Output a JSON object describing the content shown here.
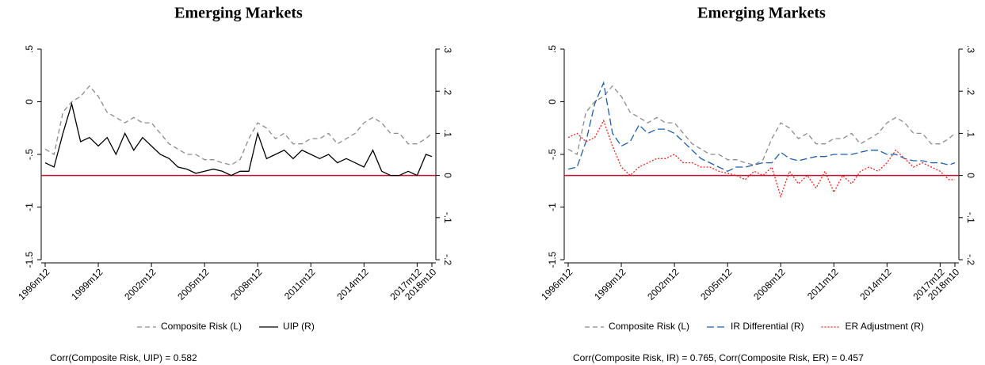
{
  "chart_data": [
    {
      "type": "line",
      "title": "Emerging Markets",
      "x": [
        "1996m12",
        "1997m06",
        "1997m12",
        "1998m06",
        "1998m12",
        "1999m06",
        "1999m12",
        "2000m06",
        "2000m12",
        "2001m06",
        "2001m12",
        "2002m06",
        "2002m12",
        "2003m06",
        "2003m12",
        "2004m06",
        "2004m12",
        "2005m06",
        "2005m12",
        "2006m06",
        "2006m12",
        "2007m06",
        "2007m12",
        "2008m06",
        "2008m12",
        "2009m06",
        "2009m12",
        "2010m06",
        "2010m12",
        "2011m06",
        "2011m12",
        "2012m06",
        "2012m12",
        "2013m06",
        "2013m12",
        "2014m06",
        "2014m12",
        "2015m06",
        "2015m12",
        "2016m06",
        "2016m12",
        "2017m06",
        "2017m12",
        "2018m06",
        "2018m10"
      ],
      "xticks": [
        "1996m12",
        "1999m12",
        "2002m12",
        "2005m12",
        "2008m12",
        "2011m12",
        "2014m12",
        "2017m12",
        "2018m10"
      ],
      "ylim": [
        -1.5,
        0.5
      ],
      "yticks": [
        {
          "value": -1.5,
          "label": "-1.5"
        },
        -1,
        {
          "value": -0.5,
          "label": "-.5"
        },
        0,
        {
          "value": 0.5,
          "label": ".5"
        }
      ],
      "y2lim": [
        -0.2,
        0.3
      ],
      "y2ticks": [
        {
          "value": -0.2,
          "label": "-.2"
        },
        {
          "value": -0.1,
          "label": "-.1"
        },
        0,
        {
          "value": 0.1,
          "label": ".1"
        },
        {
          "value": 0.2,
          "label": ".2"
        },
        {
          "value": 0.3,
          "label": ".3"
        }
      ],
      "hline": {
        "value": 0,
        "axis": "y2",
        "color": "#c8102e"
      },
      "series": [
        {
          "name": "Composite Risk (L)",
          "color": "#8c8c8c",
          "dash": "dashed",
          "axis": "y",
          "values": [
            -0.45,
            -0.5,
            -0.1,
            0.0,
            0.05,
            0.15,
            0.05,
            -0.1,
            -0.15,
            -0.2,
            -0.15,
            -0.2,
            -0.2,
            -0.3,
            -0.4,
            -0.45,
            -0.5,
            -0.5,
            -0.55,
            -0.55,
            -0.58,
            -0.6,
            -0.55,
            -0.35,
            -0.2,
            -0.25,
            -0.35,
            -0.3,
            -0.4,
            -0.4,
            -0.35,
            -0.35,
            -0.3,
            -0.4,
            -0.35,
            -0.3,
            -0.2,
            -0.15,
            -0.2,
            -0.3,
            -0.3,
            -0.4,
            -0.4,
            -0.35,
            -0.3
          ]
        },
        {
          "name": "UIP (R)",
          "color": "#000000",
          "dash": "solid",
          "axis": "y2",
          "values": [
            0.03,
            0.02,
            0.1,
            0.17,
            0.08,
            0.09,
            0.07,
            0.09,
            0.05,
            0.1,
            0.06,
            0.09,
            0.07,
            0.05,
            0.04,
            0.02,
            0.015,
            0.005,
            0.01,
            0.015,
            0.01,
            0.0,
            0.01,
            0.01,
            0.1,
            0.04,
            0.05,
            0.06,
            0.04,
            0.06,
            0.05,
            0.04,
            0.05,
            0.03,
            0.04,
            0.03,
            0.02,
            0.06,
            0.01,
            0.0,
            0.0,
            0.01,
            0.0,
            0.05,
            0.045
          ]
        }
      ],
      "note": "Corr(Composite Risk, UIP) = 0.582"
    },
    {
      "type": "line",
      "title": "Emerging Markets",
      "x": [
        "1996m12",
        "1997m06",
        "1997m12",
        "1998m06",
        "1998m12",
        "1999m06",
        "1999m12",
        "2000m06",
        "2000m12",
        "2001m06",
        "2001m12",
        "2002m06",
        "2002m12",
        "2003m06",
        "2003m12",
        "2004m06",
        "2004m12",
        "2005m06",
        "2005m12",
        "2006m06",
        "2006m12",
        "2007m06",
        "2007m12",
        "2008m06",
        "2008m12",
        "2009m06",
        "2009m12",
        "2010m06",
        "2010m12",
        "2011m06",
        "2011m12",
        "2012m06",
        "2012m12",
        "2013m06",
        "2013m12",
        "2014m06",
        "2014m12",
        "2015m06",
        "2015m12",
        "2016m06",
        "2016m12",
        "2017m06",
        "2017m12",
        "2018m06",
        "2018m10"
      ],
      "xticks": [
        "1996m12",
        "1999m12",
        "2002m12",
        "2005m12",
        "2008m12",
        "2011m12",
        "2014m12",
        "2017m12",
        "2018m10"
      ],
      "ylim": [
        -1.5,
        0.5
      ],
      "yticks": [
        {
          "value": -1.5,
          "label": "-1.5"
        },
        -1,
        {
          "value": -0.5,
          "label": "-.5"
        },
        0,
        {
          "value": 0.5,
          "label": ".5"
        }
      ],
      "y2lim": [
        -0.2,
        0.3
      ],
      "y2ticks": [
        {
          "value": -0.2,
          "label": "-.2"
        },
        {
          "value": -0.1,
          "label": "-.1"
        },
        0,
        {
          "value": 0.1,
          "label": ".1"
        },
        {
          "value": 0.2,
          "label": ".2"
        },
        {
          "value": 0.3,
          "label": ".3"
        }
      ],
      "hline": {
        "value": 0,
        "axis": "y2",
        "color": "#c8102e"
      },
      "series": [
        {
          "name": "Composite Risk (L)",
          "color": "#8c8c8c",
          "dash": "dashed",
          "axis": "y",
          "values": [
            -0.45,
            -0.5,
            -0.1,
            0.0,
            0.05,
            0.15,
            0.05,
            -0.1,
            -0.15,
            -0.2,
            -0.15,
            -0.2,
            -0.2,
            -0.3,
            -0.4,
            -0.45,
            -0.5,
            -0.5,
            -0.55,
            -0.55,
            -0.58,
            -0.6,
            -0.55,
            -0.35,
            -0.2,
            -0.25,
            -0.35,
            -0.3,
            -0.4,
            -0.4,
            -0.35,
            -0.35,
            -0.3,
            -0.4,
            -0.35,
            -0.3,
            -0.2,
            -0.15,
            -0.2,
            -0.3,
            -0.3,
            -0.4,
            -0.4,
            -0.35,
            -0.3
          ]
        },
        {
          "name": "IR Differential (R)",
          "color": "#1f5fa8",
          "dash": "longdash",
          "axis": "y2",
          "values": [
            0.015,
            0.02,
            0.08,
            0.17,
            0.22,
            0.1,
            0.07,
            0.08,
            0.12,
            0.1,
            0.11,
            0.11,
            0.1,
            0.08,
            0.06,
            0.04,
            0.03,
            0.02,
            0.01,
            0.02,
            0.02,
            0.025,
            0.03,
            0.03,
            0.055,
            0.04,
            0.035,
            0.04,
            0.045,
            0.045,
            0.05,
            0.05,
            0.05,
            0.055,
            0.06,
            0.06,
            0.05,
            0.05,
            0.04,
            0.035,
            0.035,
            0.03,
            0.03,
            0.025,
            0.03
          ]
        },
        {
          "name": "ER Adjustment (R)",
          "color": "#e8291c",
          "dash": "dotted",
          "axis": "y2",
          "values": [
            0.09,
            0.1,
            0.08,
            0.09,
            0.13,
            0.07,
            0.02,
            0.0,
            0.02,
            0.03,
            0.04,
            0.04,
            0.05,
            0.03,
            0.03,
            0.02,
            0.02,
            0.01,
            0.005,
            0.0,
            -0.01,
            0.01,
            0.0,
            0.02,
            -0.05,
            0.01,
            -0.02,
            0.0,
            -0.03,
            0.01,
            -0.04,
            0.0,
            -0.02,
            0.01,
            0.02,
            0.01,
            0.03,
            0.06,
            0.04,
            0.02,
            0.03,
            0.02,
            0.01,
            -0.01,
            -0.01
          ]
        }
      ],
      "note": "Corr(Composite Risk, IR) = 0.765, Corr(Composite Risk, ER) = 0.457"
    }
  ]
}
